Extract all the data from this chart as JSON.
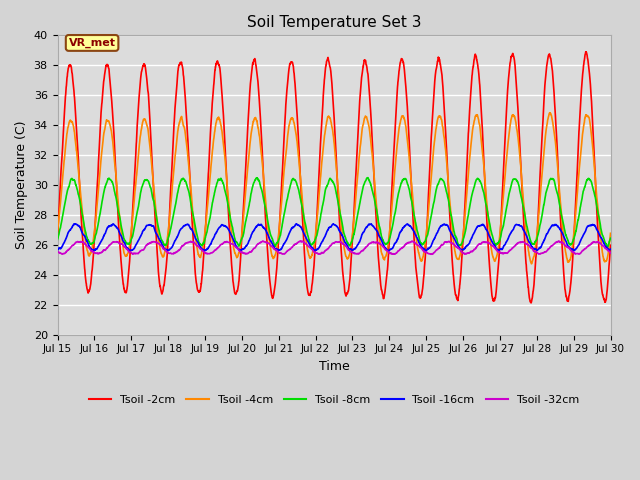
{
  "title": "Soil Temperature Set 3",
  "xlabel": "Time",
  "ylabel": "Soil Temperature (C)",
  "ylim": [
    20,
    40
  ],
  "yticks": [
    20,
    22,
    24,
    26,
    28,
    30,
    32,
    34,
    36,
    38,
    40
  ],
  "x_tick_labels": [
    "Jul 15",
    "Jul 16",
    "Jul 17",
    "Jul 18",
    "Jul 19",
    "Jul 20",
    "Jul 21",
    "Jul 22",
    "Jul 23",
    "Jul 24",
    "Jul 25",
    "Jul 26",
    "Jul 27",
    "Jul 28",
    "Jul 29",
    "Jul 30"
  ],
  "background_color": "#d4d4d4",
  "plot_bg_color": "#dcdcdc",
  "grid_color": "#ffffff",
  "series_order": [
    "Tsoil -2cm",
    "Tsoil -4cm",
    "Tsoil -8cm",
    "Tsoil -16cm",
    "Tsoil -32cm"
  ],
  "series": {
    "Tsoil -2cm": {
      "color": "#ff0000",
      "lw": 1.2,
      "amplitude": 7.5,
      "mean": 30.5,
      "phase": 0.55,
      "noise": 0.3
    },
    "Tsoil -4cm": {
      "color": "#ff8800",
      "lw": 1.2,
      "amplitude": 4.5,
      "mean": 29.8,
      "phase": 0.7,
      "noise": 0.2
    },
    "Tsoil -8cm": {
      "color": "#00dd00",
      "lw": 1.2,
      "amplitude": 2.2,
      "mean": 28.2,
      "phase": 1.0,
      "noise": 0.15
    },
    "Tsoil -16cm": {
      "color": "#0000ff",
      "lw": 1.2,
      "amplitude": 0.85,
      "mean": 26.5,
      "phase": 1.5,
      "noise": 0.1
    },
    "Tsoil -32cm": {
      "color": "#cc00cc",
      "lw": 1.2,
      "amplitude": 0.4,
      "mean": 25.8,
      "phase": 2.2,
      "noise": 0.08
    }
  },
  "annotation_text": "VR_met",
  "period_days": 1.0,
  "n_points": 3000,
  "duration_days": 15
}
